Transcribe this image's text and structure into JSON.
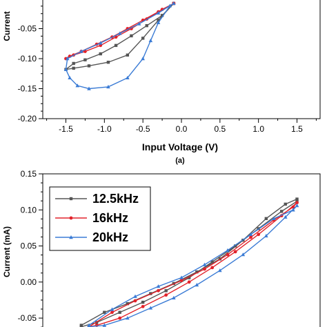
{
  "chart_data": [
    {
      "type": "line",
      "panel_label": "(a)",
      "xlabel": "Input Voltage (V)",
      "ylabel": "Current",
      "xlim": [
        -1.8,
        1.8
      ],
      "ylim": [
        -0.2,
        0.0
      ],
      "xticks": [
        "-1.5",
        "-1.0",
        "-0.5",
        "0.0",
        "0.5",
        "1.0",
        "1.5"
      ],
      "yticks": [
        "-0.05",
        "-0.10",
        "-0.15",
        "-0.20"
      ],
      "series": [
        {
          "name": "12.5kHz",
          "color": "#555555",
          "marker": "square",
          "x": [
            -0.1,
            -0.25,
            -0.45,
            -0.65,
            -0.85,
            -1.05,
            -1.25,
            -1.4,
            -1.5,
            -1.4,
            -1.2,
            -0.95,
            -0.7,
            -0.5,
            -0.3,
            -0.1
          ],
          "y": [
            -0.008,
            -0.028,
            -0.045,
            -0.062,
            -0.078,
            -0.092,
            -0.102,
            -0.108,
            -0.118,
            -0.116,
            -0.112,
            -0.106,
            -0.094,
            -0.066,
            -0.036,
            -0.008
          ]
        },
        {
          "name": "16kHz",
          "color": "#e2222a",
          "marker": "circle",
          "x": [
            -0.1,
            -0.3,
            -0.5,
            -0.7,
            -0.9,
            -1.1,
            -1.3,
            -1.45,
            -1.5,
            -1.4,
            -1.25,
            -1.05,
            -0.85,
            -0.65,
            -0.45,
            -0.25,
            -0.1
          ],
          "y": [
            -0.008,
            -0.022,
            -0.036,
            -0.05,
            -0.064,
            -0.076,
            -0.088,
            -0.096,
            -0.1,
            -0.094,
            -0.088,
            -0.078,
            -0.064,
            -0.05,
            -0.034,
            -0.018,
            -0.008
          ]
        },
        {
          "name": "20kHz",
          "color": "#3a7bd5",
          "marker": "triangle",
          "x": [
            -0.1,
            -0.3,
            -0.55,
            -0.8,
            -1.05,
            -1.3,
            -1.48,
            -1.5,
            -1.45,
            -1.35,
            -1.2,
            -0.95,
            -0.7,
            -0.5,
            -0.4,
            -0.3,
            -0.15
          ],
          "y": [
            -0.008,
            -0.024,
            -0.042,
            -0.058,
            -0.074,
            -0.088,
            -0.1,
            -0.118,
            -0.132,
            -0.145,
            -0.15,
            -0.147,
            -0.132,
            -0.1,
            -0.07,
            -0.04,
            -0.012
          ]
        }
      ]
    },
    {
      "type": "line",
      "ylabel": "Current (mA)",
      "ylim": [
        -0.06,
        0.15
      ],
      "xlim": [
        -1.8,
        1.8
      ],
      "yticks": [
        "0.15",
        "0.10",
        "0.05",
        "0.00",
        "-0.05"
      ],
      "legend": {
        "placement": "top-left",
        "entries": [
          "12.5kHz",
          "16kHz",
          "20kHz"
        ]
      },
      "series": [
        {
          "name": "12.5kHz",
          "color": "#555555",
          "marker": "square",
          "x": [
            -1.3,
            -1.0,
            -0.7,
            -0.4,
            -0.1,
            0.2,
            0.5,
            0.8,
            1.1,
            1.35,
            1.5,
            1.5,
            1.3,
            1.0,
            0.7,
            0.4,
            0.1,
            -0.2,
            -0.5,
            -0.8,
            -1.1,
            -1.3
          ],
          "y": [
            -0.06,
            -0.042,
            -0.03,
            -0.016,
            -0.002,
            0.014,
            0.032,
            0.058,
            0.088,
            0.108,
            0.115,
            0.112,
            0.098,
            0.074,
            0.05,
            0.028,
            0.006,
            -0.012,
            -0.028,
            -0.042,
            -0.056,
            -0.062
          ]
        },
        {
          "name": "16kHz",
          "color": "#e2222a",
          "marker": "circle",
          "x": [
            -1.2,
            -0.9,
            -0.6,
            -0.3,
            0.0,
            0.3,
            0.6,
            0.9,
            1.2,
            1.45,
            1.5,
            1.3,
            1.0,
            0.7,
            0.4,
            0.1,
            -0.2,
            -0.5,
            -0.8,
            -1.1,
            -1.2
          ],
          "y": [
            -0.062,
            -0.042,
            -0.026,
            -0.012,
            0.002,
            0.018,
            0.038,
            0.062,
            0.086,
            0.104,
            0.11,
            0.092,
            0.066,
            0.042,
            0.02,
            0.0,
            -0.018,
            -0.034,
            -0.05,
            -0.06,
            -0.062
          ]
        },
        {
          "name": "20kHz",
          "color": "#3a7bd5",
          "marker": "triangle",
          "x": [
            -1.2,
            -0.9,
            -0.6,
            -0.3,
            0.0,
            0.3,
            0.6,
            0.9,
            1.2,
            1.45,
            1.5,
            1.35,
            1.1,
            0.8,
            0.5,
            0.2,
            -0.1,
            -0.4,
            -0.7,
            -1.0,
            -1.2
          ],
          "y": [
            -0.06,
            -0.038,
            -0.02,
            -0.006,
            0.006,
            0.024,
            0.044,
            0.066,
            0.088,
            0.1,
            0.106,
            0.09,
            0.064,
            0.038,
            0.016,
            -0.004,
            -0.022,
            -0.036,
            -0.05,
            -0.06,
            -0.062
          ]
        }
      ]
    }
  ]
}
